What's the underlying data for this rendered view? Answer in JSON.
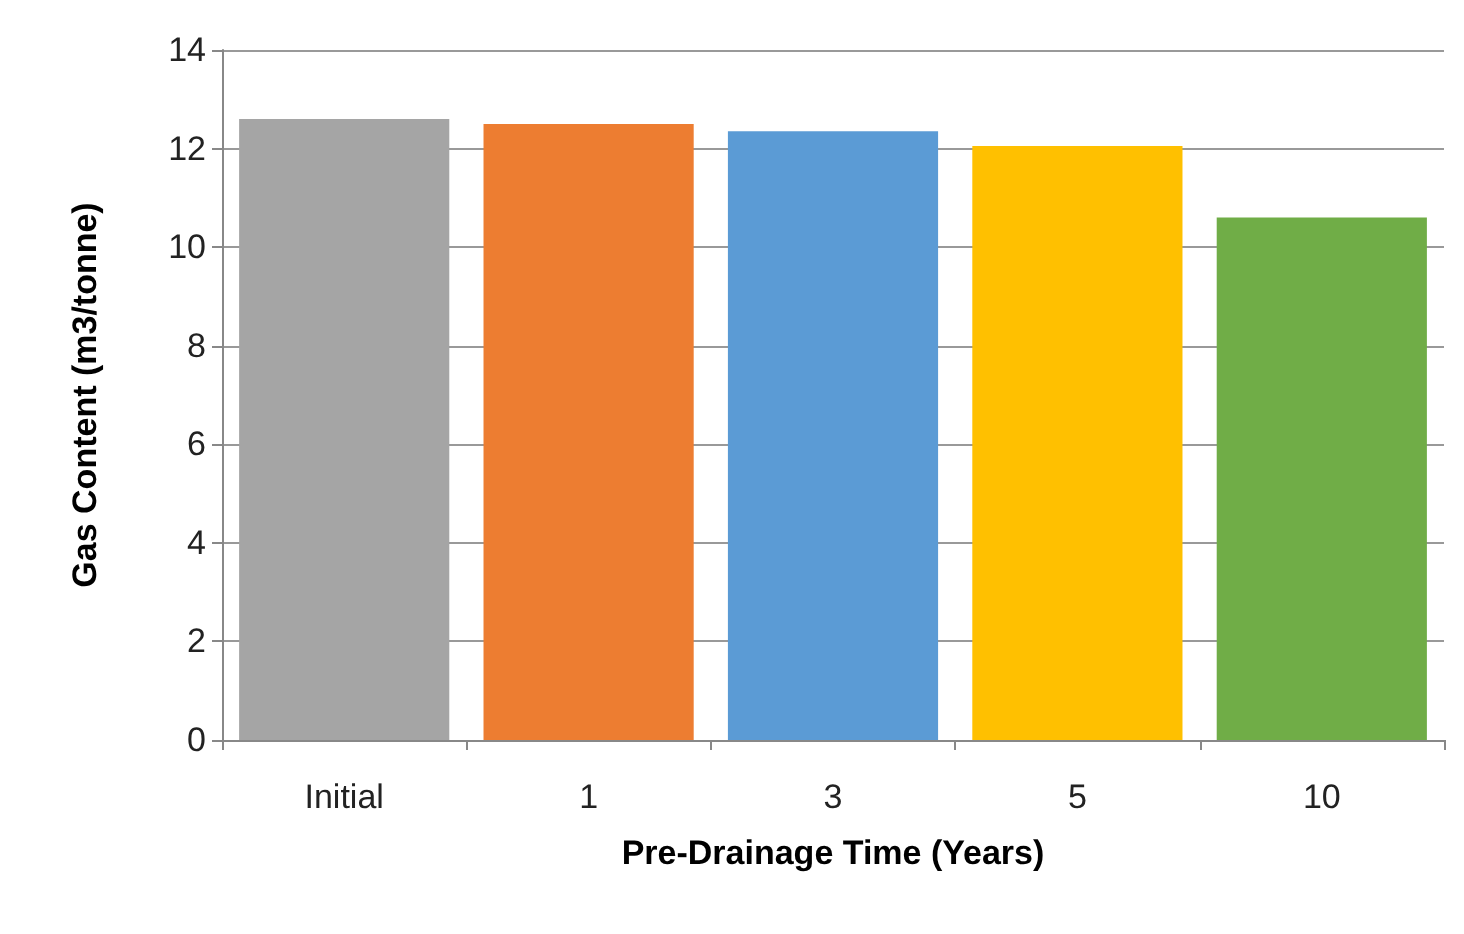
{
  "chart_data": {
    "type": "bar",
    "xlabel": "Pre-Drainage Time (Years)",
    "ylabel": "Gas Content (m3/tonne)",
    "categories": [
      "Initial",
      "1",
      "3",
      "5",
      "10"
    ],
    "values": [
      12.6,
      12.5,
      12.35,
      12.05,
      10.6
    ],
    "colors": [
      "#a5a5a5",
      "#ed7d31",
      "#5b9bd5",
      "#ffc000",
      "#70ad47"
    ],
    "ylim": [
      0,
      14
    ],
    "yticks": [
      0,
      2,
      4,
      6,
      8,
      10,
      12,
      14
    ],
    "grid": "y"
  }
}
